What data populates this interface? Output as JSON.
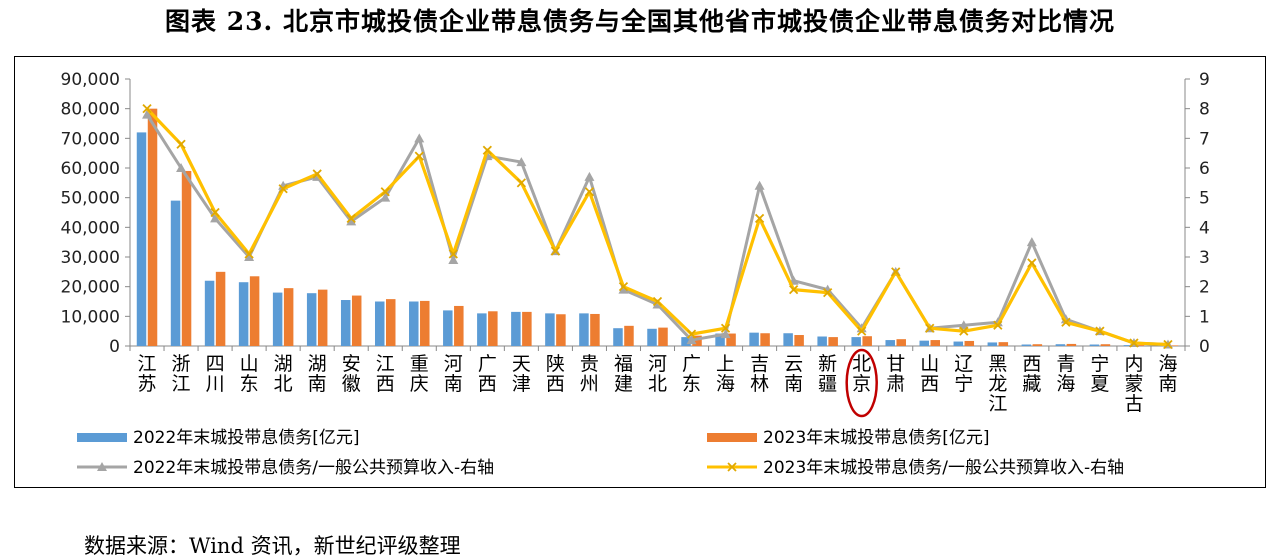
{
  "title": "图表 23. 北京市城投债企业带息债务与全国其他省市城投债企业带息债务对比情况",
  "source": "数据来源：Wind 资讯，新世纪评级整理",
  "chart_data": {
    "type": "bar",
    "categories": [
      "江苏",
      "浙江",
      "四川",
      "山东",
      "湖北",
      "湖南",
      "安徽",
      "江西",
      "重庆",
      "河南",
      "广西",
      "天津",
      "陕西",
      "贵州",
      "福建",
      "河北",
      "广东",
      "上海",
      "吉林",
      "云南",
      "新疆",
      "北京",
      "甘肃",
      "山西",
      "辽宁",
      "黑龙江",
      "西藏",
      "青海",
      "宁夏",
      "内蒙古",
      "海南"
    ],
    "category_labels": [
      "江苏",
      "浙江",
      "四川",
      "山东",
      "湖北",
      "湖南",
      "安徽",
      "江西",
      "重庆",
      "河南",
      "广西",
      "天津",
      "陕西",
      "贵州",
      "福建",
      "河北",
      "广东",
      "上海",
      "吉林",
      "云南",
      "新疆",
      "北京",
      "甘肃",
      "山西",
      "辽宁",
      "黑龙江",
      "西藏",
      "青海",
      "宁夏",
      "内蒙古",
      "海南"
    ],
    "highlight_category": "北京",
    "series": [
      {
        "name": "2022年末城投带息债务[亿元]",
        "type": "bar",
        "axis": "left",
        "color": "#5b9bd5",
        "values": [
          72000,
          49000,
          22000,
          21500,
          18000,
          17800,
          15500,
          15000,
          15000,
          12000,
          11000,
          11500,
          11000,
          11000,
          6000,
          5800,
          3000,
          4200,
          4500,
          4300,
          3200,
          3000,
          2000,
          1800,
          1500,
          1200,
          500,
          600,
          500,
          300,
          200
        ]
      },
      {
        "name": "2023年末城投带息债务[亿元]",
        "type": "bar",
        "axis": "left",
        "color": "#ed7d31",
        "values": [
          80000,
          59000,
          25000,
          23500,
          19500,
          19000,
          17000,
          15800,
          15200,
          13500,
          11700,
          11500,
          10700,
          10800,
          6800,
          6200,
          3500,
          4200,
          4300,
          3700,
          3000,
          3300,
          2300,
          2000,
          1700,
          1300,
          600,
          700,
          600,
          300,
          200
        ]
      },
      {
        "name": "2022年末城投带息债务/一般公共预算收入-右轴",
        "type": "line",
        "axis": "right",
        "color": "#a5a5a5",
        "marker": "triangle",
        "values": [
          7.8,
          6.0,
          4.3,
          3.0,
          5.4,
          5.7,
          4.2,
          5.0,
          7.0,
          2.9,
          6.4,
          6.2,
          3.2,
          5.7,
          1.9,
          1.4,
          0.2,
          0.4,
          5.4,
          2.2,
          1.9,
          0.6,
          2.5,
          0.6,
          0.7,
          0.8,
          3.5,
          0.9,
          0.5,
          0.1,
          0.05
        ]
      },
      {
        "name": "2023年末城投带息债务/一般公共预算收入-右轴",
        "type": "line",
        "axis": "right",
        "color": "#ffc000",
        "marker": "x",
        "values": [
          8.0,
          6.8,
          4.5,
          3.1,
          5.3,
          5.8,
          4.3,
          5.2,
          6.4,
          3.1,
          6.6,
          5.5,
          3.2,
          5.2,
          2.0,
          1.5,
          0.4,
          0.6,
          4.3,
          1.9,
          1.8,
          0.5,
          2.5,
          0.6,
          0.5,
          0.7,
          2.8,
          0.8,
          0.5,
          0.1,
          0.05
        ]
      }
    ],
    "ylim_left": [
      0,
      90000
    ],
    "yticks_left": [
      "0",
      "10,000",
      "20,000",
      "30,000",
      "40,000",
      "50,000",
      "60,000",
      "70,000",
      "80,000",
      "90,000"
    ],
    "ylim_right": [
      0,
      9
    ],
    "yticks_right": [
      "0",
      "1",
      "2",
      "3",
      "4",
      "5",
      "6",
      "7",
      "8",
      "9"
    ],
    "legend_position": "bottom",
    "grid": false
  }
}
